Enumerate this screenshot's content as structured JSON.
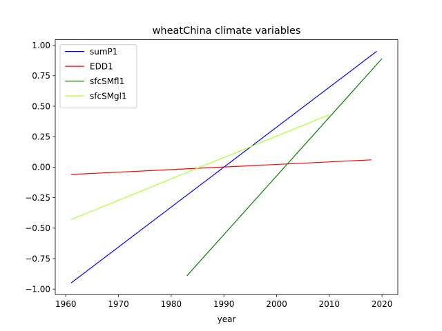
{
  "chart_data": {
    "type": "line",
    "title": "wheatChina climate variables",
    "xlabel": "year",
    "ylabel": "",
    "xlim": [
      1958,
      2023
    ],
    "ylim": [
      -1.045,
      1.045
    ],
    "xticks": [
      1960,
      1970,
      1980,
      1990,
      2000,
      2010,
      2020
    ],
    "xtick_labels": [
      "1960",
      "1970",
      "1980",
      "1990",
      "2000",
      "2010",
      "2020"
    ],
    "yticks": [
      1.0,
      0.75,
      0.5,
      0.25,
      0.0,
      -0.25,
      -0.5,
      -0.75,
      -1.0
    ],
    "ytick_labels": [
      "1.00",
      "0.75",
      "0.50",
      "0.25",
      "0.00",
      "−0.25",
      "−0.50",
      "−0.75",
      "−1.00"
    ],
    "grid": false,
    "legend_position": "top-left",
    "series": [
      {
        "name": "sumP1",
        "color": "#0000ff",
        "x": [
          1961,
          2019
        ],
        "y": [
          -0.95,
          0.95
        ]
      },
      {
        "name": "EDD1",
        "color": "#ff0000",
        "x": [
          1961,
          2018
        ],
        "y": [
          -0.06,
          0.06
        ]
      },
      {
        "name": "sfcSMfl1",
        "color": "#008000",
        "x": [
          1983,
          2020
        ],
        "y": [
          -0.89,
          0.89
        ]
      },
      {
        "name": "sfcSMgl1",
        "color": "#adff2f",
        "x": [
          1961,
          2010
        ],
        "y": [
          -0.43,
          0.43
        ]
      }
    ]
  }
}
